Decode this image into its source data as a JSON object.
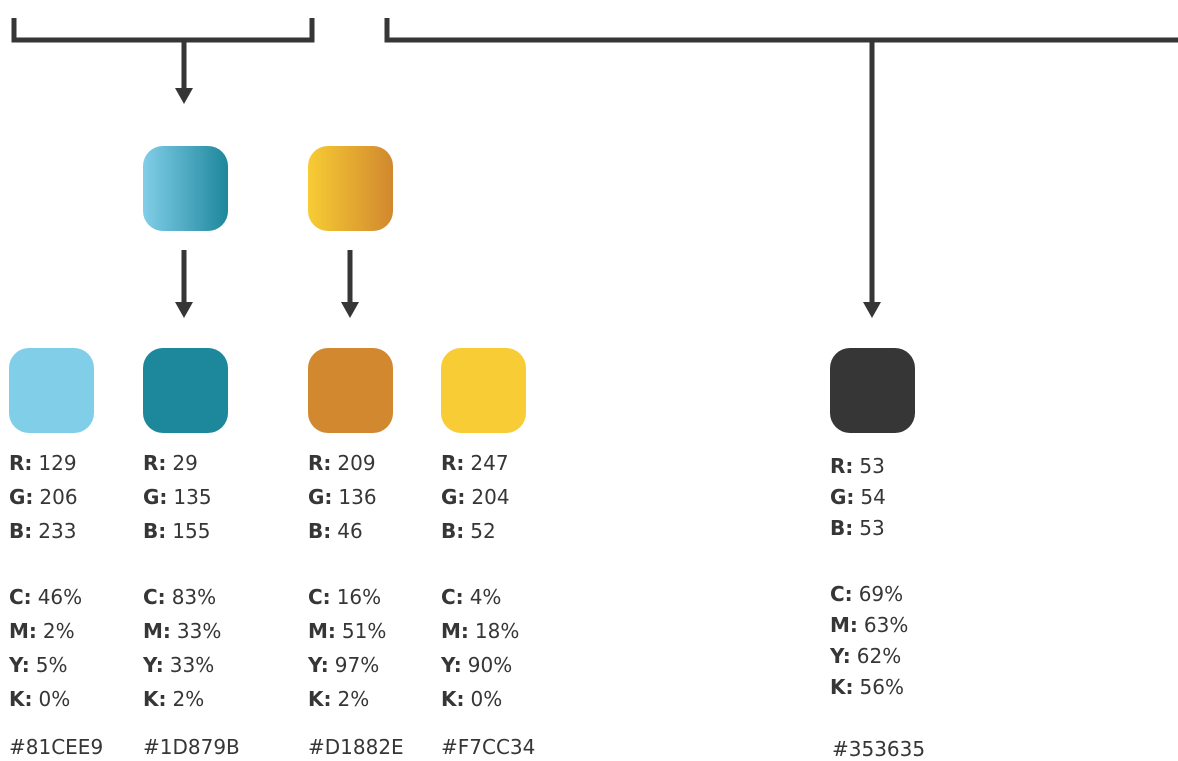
{
  "gradients": [
    {
      "from": "#81CEE9",
      "to": "#1D879B"
    },
    {
      "from": "#F7CC34",
      "to": "#D1882E"
    }
  ],
  "line_color": "#353635",
  "swatches": [
    {
      "color": "#81CEE9",
      "hex": "#81CEE9",
      "rgb": {
        "r": "129",
        "g": "206",
        "b": "233"
      },
      "cmyk": {
        "c": "46%",
        "m": "2%",
        "y": "5%",
        "k": "0%"
      }
    },
    {
      "color": "#1D879B",
      "hex": "#1D879B",
      "rgb": {
        "r": "29",
        "g": "135",
        "b": "155"
      },
      "cmyk": {
        "c": "83%",
        "m": "33%",
        "y": "33%",
        "k": "2%"
      }
    },
    {
      "color": "#D1882E",
      "hex": "#D1882E",
      "rgb": {
        "r": "209",
        "g": "136",
        "b": "46"
      },
      "cmyk": {
        "c": "16%",
        "m": "51%",
        "y": "97%",
        "k": "2%"
      }
    },
    {
      "color": "#F7CC34",
      "hex": "#F7CC34",
      "rgb": {
        "r": "247",
        "g": "204",
        "b": "52"
      },
      "cmyk": {
        "c": "4%",
        "m": "18%",
        "y": "90%",
        "k": "0%"
      }
    },
    {
      "color": "#353635",
      "hex": "#353635",
      "rgb": {
        "r": "53",
        "g": "54",
        "b": "53"
      },
      "cmyk": {
        "c": "69%",
        "m": "63%",
        "y": "62%",
        "k": "56%"
      }
    }
  ],
  "labels": {
    "r": "R:",
    "g": "G:",
    "b": "B:",
    "c": "C:",
    "m": "M:",
    "y": "Y:",
    "k": "K:"
  }
}
